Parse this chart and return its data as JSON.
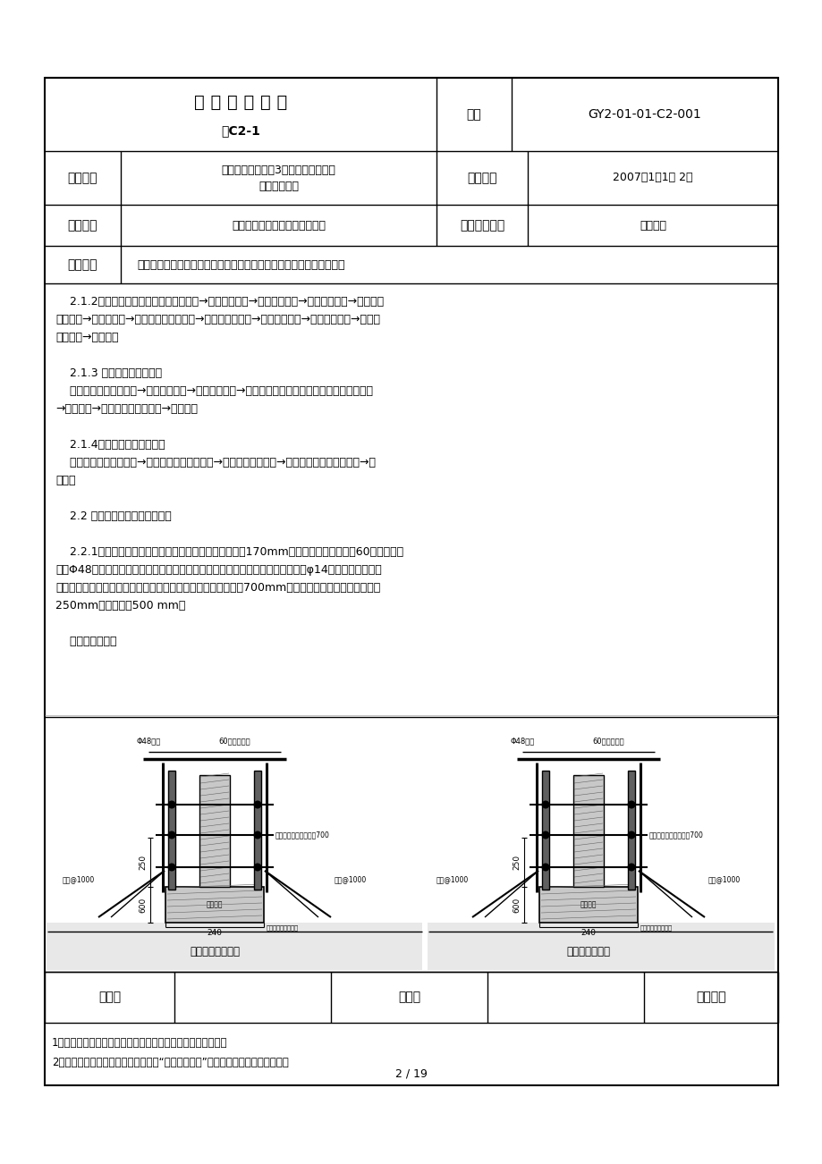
{
  "page_bg": "#ffffff",
  "title_main": "技 术 交 底 记 录",
  "title_sub": "表C2-1",
  "code_label": "编号",
  "code_value": "GY2-01-01-C2-001",
  "row1_label": "工程名称",
  "row1_value_line1": "北京首都国际机场3号航站楼旅客过夜",
  "row1_value_line2": "用房西楼工程",
  "row1_mid_label": "交底日期",
  "row1_mid_value": "2007年1月1日 2日",
  "row2_label": "施工单位",
  "row2_value": "中国建筑一局（集团）有限公司",
  "row2_mid_label": "分项工程名称",
  "row2_mid_value": "模板工程",
  "row3_label": "交底提要",
  "row3_value": "地下室墙体、柱模板的施工會备、工艺流程、质量要求以及其他措施等",
  "body_lines": [
    "    2.1.2墙体支模工艺流程：弹模板就位线→搞设操作平台→安装洞口模板→安装下层角模→安装下层",
    "一侧模板→穿对拉螺栓→安装下层另一侧模板→安装上层的模板→紧固穿墙螺栓→搞设模板支撑→校正模",
    "板垂直度→检查验收",
    "",
    "    2.1.3 柱模板施工工艺流程",
    "    弹模板位置线和掌握线→搞设操作平台→模板吸装就位→设置模板的支撑体系并初步调整模板垂直度",
    "→加固模板→调整校正模板垂直度→检查验收",
    "",
    "    2.1.4洞口模板施工工艺流程",
    "    依据图纸进行模板加工→拼装模板成为一个整体→模板整体安装就位→调整模板的位置和垂直度→检",
    "查验收",
    "",
    "    2.2 地下室导墙及反梁模板做法",
    "",
    "    2.2.1本工程底板为筏板基础，导墙模板为基础反梁向上170mm，反梁及导墙侧模接受60系列小锂模",
    "板，Φ48锂管做背楞，侧向接受锂管支撑与马登锂筋焊接固定。导墙穿墙螺栓接受φ14滚轧满丝三接头止",
    "水螺栓进行对拉，反梁穿墙螺栓为一般螺栓，螺杆的水平间距为700mm，竖向间距为第一道距模板底口",
    "250mm，其他均为500 mm。",
    "",
    "    模板支撑见下图"
  ],
  "footer_label1": "审核人",
  "footer_label2": "交底人",
  "footer_label3": "被交底人",
  "note1": "1、本表由施工单位填写，交底单位与被交底单位各保存一份。",
  "note2": "2、当做分项施工技术交底时，应填写“分项工程名称”栏，其他技术交底可不填写。",
  "page_num": "2 / 19"
}
